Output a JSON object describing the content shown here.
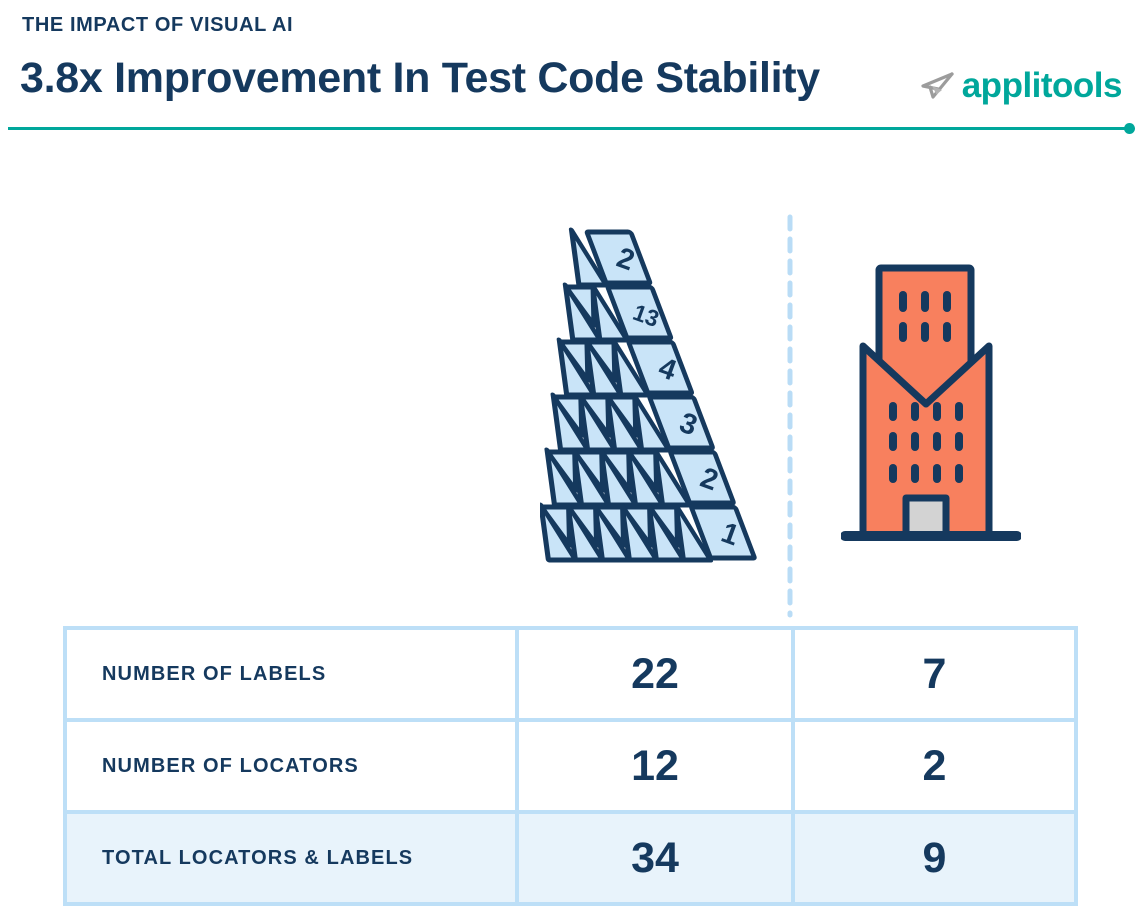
{
  "header": {
    "eyebrow": "THE IMPACT OF VISUAL AI",
    "title": "3.8x Improvement In Test Code Stability",
    "logo_text": "applitools"
  },
  "illustration": {
    "card_labels": [
      "2",
      "13",
      "4",
      "3",
      "2",
      "1"
    ],
    "left_icon": "house-of-cards",
    "right_icon": "stable-building"
  },
  "chart_data": {
    "type": "table",
    "title": "3.8x Improvement In Test Code Stability",
    "column_icons": [
      "house-of-cards",
      "stable-building"
    ],
    "rows": [
      {
        "label": "NUMBER OF LABELS",
        "values": [
          22,
          7
        ]
      },
      {
        "label": "NUMBER OF LOCATORS",
        "values": [
          12,
          2
        ]
      },
      {
        "label": "TOTAL LOCATORS & LABELS",
        "values": [
          34,
          9
        ]
      }
    ]
  },
  "colors": {
    "navy": "#15395e",
    "teal": "#00a79b",
    "coral": "#f8805e",
    "card-blue": "#c9e4f8",
    "table-border": "#bddff7",
    "total-bg": "#e8f3fb",
    "dash-blue": "#b9dcf6",
    "door-gray": "#d3d3d3",
    "icon-gray": "#9c9c9c",
    "icon-gray-light": "#b3b3b3"
  }
}
